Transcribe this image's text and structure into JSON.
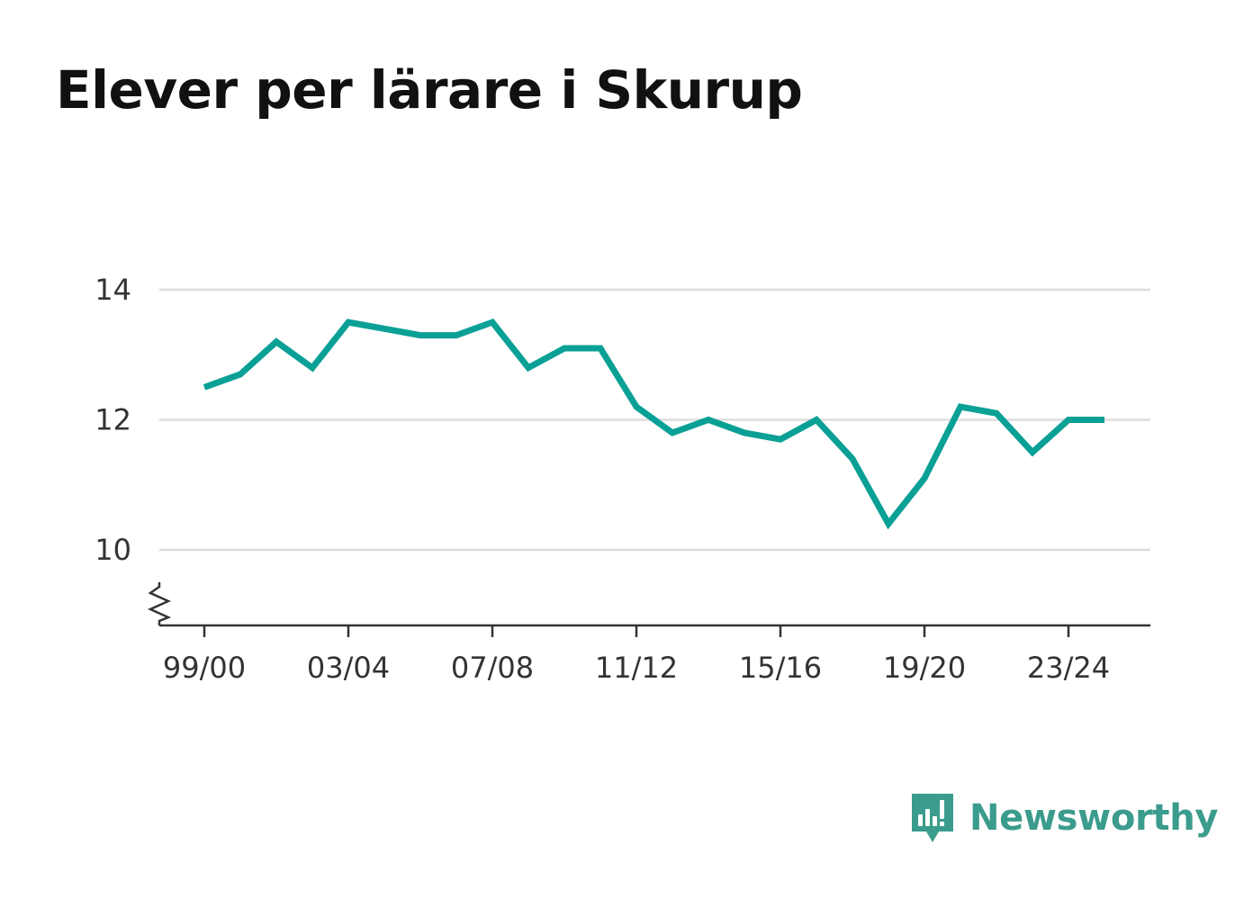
{
  "page": {
    "title": "Elever per lärare i Skurup"
  },
  "brand": {
    "name": "Newsworthy",
    "color": "#3b9c8d"
  },
  "chart_data": {
    "type": "line",
    "title": "Elever per lärare i Skurup",
    "xlabel": "",
    "ylabel": "",
    "x": [
      "99/00",
      "00/01",
      "01/02",
      "02/03",
      "03/04",
      "04/05",
      "05/06",
      "06/07",
      "07/08",
      "08/09",
      "09/10",
      "10/11",
      "11/12",
      "12/13",
      "13/14",
      "14/15",
      "15/16",
      "16/17",
      "17/18",
      "18/19",
      "19/20",
      "20/21",
      "21/22",
      "22/23",
      "23/24",
      "24/25"
    ],
    "x_tick_labels": [
      "99/00",
      "03/04",
      "07/08",
      "11/12",
      "15/16",
      "19/20",
      "23/24"
    ],
    "series": [
      {
        "name": "",
        "color": "#0aa096",
        "values": [
          12.5,
          12.7,
          13.2,
          12.8,
          13.5,
          13.4,
          13.3,
          13.3,
          13.5,
          12.8,
          13.1,
          13.1,
          12.2,
          11.8,
          12.0,
          11.8,
          11.7,
          12.0,
          11.4,
          10.4,
          11.1,
          12.2,
          12.1,
          11.5,
          12.0,
          12.0
        ]
      }
    ],
    "yticks": [
      10,
      12,
      14
    ],
    "ylim": [
      8.9,
      14
    ],
    "y_axis_break": true,
    "grid": true,
    "legend": "none"
  }
}
